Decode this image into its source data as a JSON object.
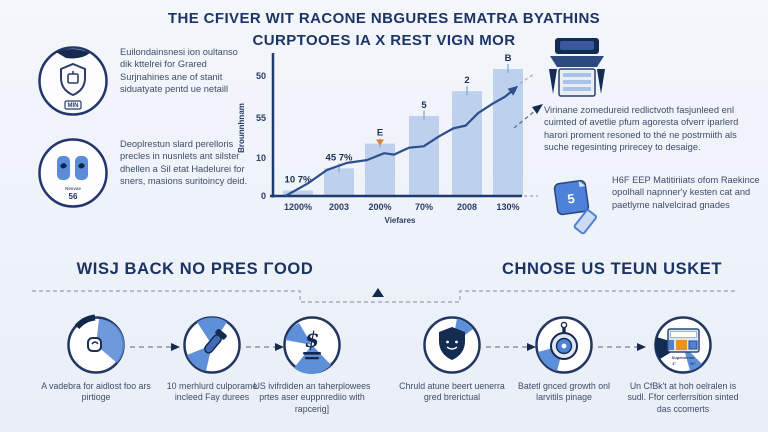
{
  "title": {
    "line1": "THE CFIVER WIT RACONE NBGURES EMATRA BYATHINS",
    "line2": "CURPTOOES IA X REST VIGN MOR"
  },
  "left_features": [
    {
      "icon": "shield-badge-icon",
      "icon_caption": "MIN",
      "text": "Euilondainsnesi ion oultanso dik kttelrei for Grared Surjnahines ane of stanit siduatyate pentd ue netaill"
    },
    {
      "icon": "mittens-icon",
      "icon_caption_top": "Nesvae",
      "icon_caption": "56",
      "text": "Deoplrestun slard perelloris precles in nusnlets ant silster dhellen a Sil etat Hadelurei for sners, masions suritoincy deid."
    }
  ],
  "chart_data": {
    "type": "bar",
    "title": "",
    "ylabel": "Brounnhnam",
    "xlabel": "Viefares",
    "y_ticks": [
      "50",
      "55",
      "10",
      "0"
    ],
    "categories": [
      "1200%",
      "2003",
      "200%",
      "70%",
      "2008",
      "130%"
    ],
    "bars": [
      {
        "label": "10 7%",
        "value_pct": 4,
        "arrow": false
      },
      {
        "label": "45 7%",
        "value_pct": 20,
        "arrow": false
      },
      {
        "label": "E",
        "value_pct": 38,
        "arrow": true
      },
      {
        "label": "5",
        "value_pct": 58,
        "arrow": false
      },
      {
        "label": "2",
        "value_pct": 76,
        "arrow": false
      },
      {
        "label": "B",
        "value_pct": 92,
        "arrow": false
      }
    ],
    "series": [
      {
        "name": "trend-line",
        "points_pct": [
          [
            5,
            0
          ],
          [
            14,
            9
          ],
          [
            22,
            19
          ],
          [
            30,
            24
          ],
          [
            38,
            26
          ],
          [
            45,
            31
          ],
          [
            49,
            30
          ],
          [
            55,
            35
          ],
          [
            61,
            36
          ],
          [
            67,
            43
          ],
          [
            73,
            49
          ],
          [
            78,
            51
          ],
          [
            83,
            60
          ],
          [
            89,
            67
          ],
          [
            94,
            72
          ],
          [
            98,
            78
          ]
        ]
      }
    ],
    "legend": [],
    "grid": false,
    "bar_color": "#bdd1ef",
    "line_color": "#2d4f8a",
    "axis_color": "#1e3a6e"
  },
  "right_features": [
    {
      "icon": "truck-icon",
      "text": "Virinane zomedureid redlictvoth fasjunleed enl cuimted of avetlie pfum agoresta ofverr iparlerd harori proment resoned to thé ne postrmiith als suche regesinting prirecey to desaige."
    },
    {
      "icon": "tag-stamp-icon",
      "icon_caption": "5",
      "text": "H6F EEP Matitiriiats ofom Raekince opolhall napnner'y kesten cat and paetlyme nalvelcirad gnades"
    }
  ],
  "bottom": {
    "left_heading": "WISJ BACK NO PRES ΓOOD",
    "right_heading": "CHNOSE US TEUN USKET",
    "steps": [
      {
        "icon": "hand-icon",
        "caption": "A vadebra for aidlost foo ars pirtioge"
      },
      {
        "icon": "tool-icon",
        "caption": "10 merhlurd culporame incleed Fay durees"
      },
      {
        "icon": "dollar-icon",
        "dollar_glyph": "$",
        "caption": "US ivifrdiden an taherplowees prtes aser euppnrediio with rapcerig]"
      },
      {
        "icon": "shield-icon",
        "caption": "Chruld atune beert uenerra gred brerictual"
      },
      {
        "icon": "gauge-icon",
        "caption": "Batetl gnced growth onl larvitils pinage"
      },
      {
        "icon": "machine-icon",
        "icon_caption": "Supeinteleu",
        "caption": "Un CfBk't at hoh oelralen is sudl. Ffor cerferrsition sinted das ccomerts"
      }
    ]
  },
  "colors": {
    "accent_blue": "#5e8fd9",
    "navy": "#16294f",
    "bar_fill": "#bdd1ef",
    "orange": "#e8922a"
  }
}
